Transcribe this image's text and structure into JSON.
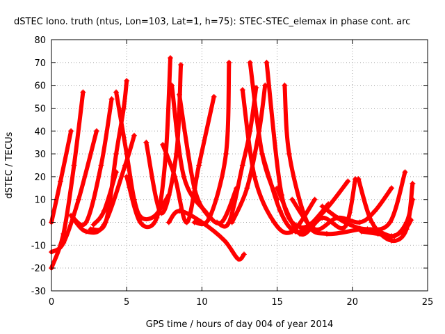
{
  "chart_data": {
    "type": "scatter",
    "title": "dSTEC Iono. truth (ntus, Lon=103, Lat=1, h=75): STEC-STEC_elemax in phase cont. arc",
    "xlabel": "GPS time / hours of day 004 of year 2014",
    "ylabel": "dSTEC  / TECUs",
    "xlim": [
      0,
      25
    ],
    "ylim": [
      -30,
      80
    ],
    "x_ticks": [
      0,
      5,
      10,
      15,
      20,
      25
    ],
    "y_ticks": [
      -30,
      -20,
      -10,
      0,
      10,
      20,
      30,
      40,
      50,
      60,
      70,
      80
    ],
    "x_tick_labels": [
      "0",
      "5",
      "10",
      "15",
      "20",
      "25"
    ],
    "y_tick_labels": [
      "-30",
      "-20",
      "-10",
      "0",
      "10",
      "20",
      "30",
      "40",
      "50",
      "60",
      "70",
      "80"
    ],
    "grid": true,
    "color": "#ff0000",
    "marker": "+",
    "series": [
      {
        "x": [
          0,
          0.6,
          1.3
        ],
        "y": [
          0,
          18,
          40
        ]
      },
      {
        "x": [
          0,
          0.8,
          1.5,
          2.1
        ],
        "y": [
          -20,
          -5,
          25,
          57
        ]
      },
      {
        "x": [
          0,
          0.8,
          1.8,
          3.0
        ],
        "y": [
          -13,
          -9,
          10,
          40
        ]
      },
      {
        "x": [
          1.3,
          2.3,
          3.3,
          4.0
        ],
        "y": [
          3,
          0,
          25,
          54
        ]
      },
      {
        "x": [
          1.4,
          2.3,
          3.5,
          4.9,
          5.5
        ],
        "y": [
          2,
          -4,
          -1,
          25,
          38
        ]
      },
      {
        "x": [
          2.6,
          3.6,
          4.3,
          4.8,
          5.0
        ],
        "y": [
          -3,
          0,
          30,
          50,
          62
        ]
      },
      {
        "x": [
          2.8,
          3.5,
          4.3
        ],
        "y": [
          -1,
          5,
          22
        ]
      },
      {
        "x": [
          4.3,
          5.0,
          5.5,
          6.0,
          6.9,
          7.8
        ],
        "y": [
          57,
          30,
          10,
          2,
          3,
          12
        ]
      },
      {
        "x": [
          5.0,
          5.9,
          7.0,
          7.6,
          7.9
        ],
        "y": [
          20,
          0,
          2,
          30,
          72
        ]
      },
      {
        "x": [
          6.3,
          7.3,
          8.3,
          8.6
        ],
        "y": [
          35,
          4,
          30,
          69
        ]
      },
      {
        "x": [
          7.4,
          8.2,
          9.0,
          9.8,
          10.8
        ],
        "y": [
          34,
          20,
          0,
          25,
          55
        ]
      },
      {
        "x": [
          7.8,
          8.5,
          10.0,
          11.5,
          12.4,
          12.8
        ],
        "y": [
          0,
          5,
          0,
          -8,
          -16,
          -14
        ]
      },
      {
        "x": [
          8.5,
          9.5,
          10.5
        ],
        "y": [
          56,
          15,
          2
        ]
      },
      {
        "x": [
          8.0,
          8.8,
          10.2,
          11.3,
          12.3
        ],
        "y": [
          60,
          20,
          5,
          0,
          15
        ]
      },
      {
        "x": [
          9.5,
          10.5,
          11.6,
          11.8
        ],
        "y": [
          0,
          2,
          30,
          70
        ]
      },
      {
        "x": [
          11.0,
          11.8,
          12.7,
          13.2,
          13.6
        ],
        "y": [
          0,
          0,
          25,
          40,
          59
        ]
      },
      {
        "x": [
          12.0,
          13.0,
          13.8,
          14.2
        ],
        "y": [
          0,
          15,
          40,
          60
        ]
      },
      {
        "x": [
          12.7,
          13.5,
          14.8,
          16.0,
          17.5
        ],
        "y": [
          58,
          20,
          0,
          -4,
          10
        ]
      },
      {
        "x": [
          13.2,
          14.0,
          15.0
        ],
        "y": [
          70,
          30,
          10
        ]
      },
      {
        "x": [
          14.0,
          15.2,
          16.2,
          17.2,
          18.4
        ],
        "y": [
          30,
          5,
          -4,
          -1,
          8
        ]
      },
      {
        "x": [
          14.3,
          15.3,
          16.5,
          18.0,
          19.7
        ],
        "y": [
          70,
          12,
          -2,
          4,
          18
        ]
      },
      {
        "x": [
          15.0,
          16.5,
          18.0,
          19.5,
          20.2
        ],
        "y": [
          15,
          -5,
          2,
          -2,
          19
        ]
      },
      {
        "x": [
          15.5,
          15.8,
          17.0,
          18.3,
          20.5
        ],
        "y": [
          60,
          30,
          0,
          -5,
          -3
        ]
      },
      {
        "x": [
          16.0,
          17.5,
          19.0,
          20.5,
          21.5,
          22.6
        ],
        "y": [
          10,
          -3,
          2,
          0,
          5,
          15
        ]
      },
      {
        "x": [
          18.0,
          19.5,
          21.0,
          22.5,
          23.5
        ],
        "y": [
          7,
          0,
          -3,
          0,
          22
        ]
      },
      {
        "x": [
          20.4,
          21.3,
          22.6,
          23.6,
          24.0
        ],
        "y": [
          19,
          0,
          -8,
          -3,
          17
        ]
      },
      {
        "x": [
          20.6,
          21.7,
          22.8,
          23.6,
          24.0
        ],
        "y": [
          -4,
          -5,
          -6,
          0,
          10
        ]
      },
      {
        "x": [
          21.5,
          22.6,
          23.5,
          23.9
        ],
        "y": [
          -3,
          -6,
          -3,
          1
        ]
      }
    ]
  }
}
